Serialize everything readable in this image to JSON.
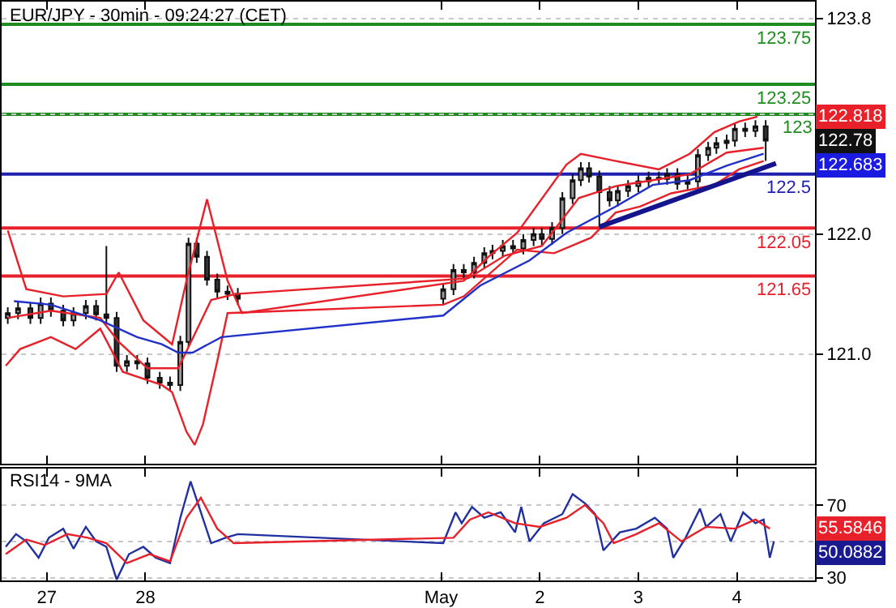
{
  "chart_data": [
    {
      "type": "candlestick",
      "title": "EUR/JPY - 30min - 09:24:27 (CET)",
      "x": [
        "--04-26T14:30",
        "--04-26T17:00",
        "--04-26T20:00",
        "--04-26T22:30",
        "--04-27T01:00",
        "--04-27T04:00",
        "--04-27T06:30",
        "--04-27T09:30",
        "--04-27T12:00",
        "--04-27T14:30",
        "--04-27T17:00",
        "--04-27T19:30",
        "--04-27T22:00",
        "--04-28T00:30",
        "--04-28T03:30",
        "--04-28T06:00",
        "--04-28T08:30",
        "--04-28T10:30",
        "--04-28T12:30",
        "--04-28T15:00",
        "--04-28T17:30",
        "--04-28T20:00",
        "--04-28T22:30",
        "--05-01T00:30",
        "--05-01T03:00",
        "--05-01T05:30",
        "--05-01T08:00",
        "--05-01T10:30",
        "--05-01T12:30",
        "--05-01T15:00",
        "--05-01T17:30",
        "--05-01T20:00",
        "--05-01T22:30",
        "--05-02T00:30",
        "--05-02T03:00",
        "--05-02T05:30",
        "--05-02T08:00",
        "--05-02T10:00",
        "--05-02T12:00",
        "--05-02T14:30",
        "--05-02T17:00",
        "--05-02T19:00",
        "--05-02T21:30",
        "--05-03T00:00",
        "--05-03T02:30",
        "--05-03T05:00",
        "--05-03T07:00",
        "--05-03T09:30",
        "--05-03T12:00",
        "--05-03T14:30",
        "--05-03T17:00",
        "--05-03T19:00",
        "--05-03T21:30",
        "--05-03T23:30",
        "--05-04T02:00",
        "--05-04T04:30",
        "--05-04T07:00"
      ],
      "ohlc": [
        [
          121.3,
          121.39,
          121.25,
          121.34
        ],
        [
          121.34,
          121.43,
          121.29,
          121.38
        ],
        [
          121.38,
          121.43,
          121.25,
          121.3
        ],
        [
          121.3,
          121.47,
          121.25,
          121.42
        ],
        [
          121.42,
          121.47,
          121.31,
          121.36
        ],
        [
          121.36,
          121.41,
          121.23,
          121.28
        ],
        [
          121.28,
          121.39,
          121.23,
          121.34
        ],
        [
          121.34,
          121.45,
          121.29,
          121.4
        ],
        [
          121.4,
          121.45,
          121.28,
          121.33
        ],
        [
          121.33,
          121.9,
          121.25,
          121.3
        ],
        [
          121.3,
          121.35,
          120.85,
          120.9
        ],
        [
          120.9,
          120.99,
          120.85,
          120.94
        ],
        [
          120.94,
          120.99,
          120.87,
          120.92
        ],
        [
          120.92,
          120.97,
          120.75,
          120.8
        ],
        [
          120.8,
          120.85,
          120.71,
          120.76
        ],
        [
          120.76,
          120.81,
          120.69,
          120.74
        ],
        [
          120.74,
          121.15,
          120.69,
          121.1
        ],
        [
          121.1,
          121.97,
          121.05,
          121.92
        ],
        [
          121.92,
          121.97,
          121.76,
          121.81
        ],
        [
          121.81,
          121.86,
          121.57,
          121.62
        ],
        [
          121.62,
          121.67,
          121.47,
          121.52
        ],
        [
          121.52,
          121.57,
          121.45,
          121.5
        ],
        [
          121.5,
          121.55,
          121.41,
          121.46
        ],
        [
          121.46,
          121.59,
          121.41,
          121.54
        ],
        [
          121.54,
          121.75,
          121.49,
          121.7
        ],
        [
          121.7,
          121.75,
          121.63,
          121.68
        ],
        [
          121.68,
          121.81,
          121.63,
          121.76
        ],
        [
          121.76,
          121.89,
          121.71,
          121.84
        ],
        [
          121.84,
          121.91,
          121.79,
          121.86
        ],
        [
          121.86,
          121.95,
          121.81,
          121.9
        ],
        [
          121.9,
          121.95,
          121.83,
          121.88
        ],
        [
          121.88,
          122.0,
          121.83,
          121.95
        ],
        [
          121.95,
          122.05,
          121.9,
          122.0
        ],
        [
          122.0,
          122.05,
          121.91,
          121.96
        ],
        [
          121.96,
          122.1,
          121.91,
          122.05
        ],
        [
          122.05,
          122.35,
          122.0,
          122.3
        ],
        [
          122.3,
          122.5,
          122.25,
          122.45
        ],
        [
          122.45,
          122.6,
          122.4,
          122.55
        ],
        [
          122.55,
          122.6,
          122.43,
          122.48
        ],
        [
          122.48,
          122.53,
          122.06,
          122.35
        ],
        [
          122.35,
          122.4,
          122.23,
          122.28
        ],
        [
          122.28,
          122.41,
          122.23,
          122.36
        ],
        [
          122.36,
          122.45,
          122.31,
          122.4
        ],
        [
          122.4,
          122.49,
          122.35,
          122.44
        ],
        [
          122.44,
          122.52,
          122.39,
          122.47
        ],
        [
          122.47,
          122.52,
          122.41,
          122.46
        ],
        [
          122.46,
          122.55,
          122.41,
          122.5
        ],
        [
          122.5,
          122.55,
          122.37,
          122.42
        ],
        [
          122.42,
          122.49,
          122.37,
          122.44
        ],
        [
          122.44,
          122.71,
          122.39,
          122.66
        ],
        [
          122.66,
          122.77,
          122.61,
          122.72
        ],
        [
          122.72,
          122.81,
          122.67,
          122.76
        ],
        [
          122.76,
          122.83,
          122.71,
          122.78
        ],
        [
          122.78,
          122.93,
          122.73,
          122.88
        ],
        [
          122.88,
          122.93,
          122.81,
          122.86
        ],
        [
          122.86,
          122.95,
          122.81,
          122.9
        ],
        [
          122.9,
          122.95,
          122.61,
          122.78
        ]
      ],
      "series": [
        {
          "type": "line",
          "color": "#e8202a",
          "x": [
            "--04-26T14:30",
            "--04-26T19:00",
            "--04-27T04:00",
            "--04-27T14:30",
            "--04-27T17:30",
            "--04-27T23:30",
            "--04-28T06:30",
            "--04-28T10:00",
            "--04-28T15:00",
            "--04-28T20:00",
            "--04-28T23:30",
            "--05-01T05:30",
            "--05-01T11:30",
            "--05-01T18:30",
            "--05-02T06:30",
            "--05-02T10:00",
            "--05-02T18:30",
            "--05-03T05:00",
            "--05-03T12:30",
            "--05-03T18:30",
            "--05-04T00:30",
            "--05-04T05:00"
          ],
          "values": [
            122.03,
            121.54,
            121.48,
            121.5,
            121.68,
            121.28,
            121.08,
            121.61,
            122.29,
            121.61,
            121.34,
            121.61,
            121.81,
            122.01,
            122.58,
            122.67,
            122.61,
            122.54,
            122.67,
            122.85,
            122.94,
            122.98
          ]
        },
        {
          "type": "line",
          "color": "#e8202a",
          "x": [
            "--04-26T14:00",
            "--04-26T17:30",
            "--04-27T01:00",
            "--04-27T07:00",
            "--04-27T13:00",
            "--04-27T18:30",
            "--04-28T04:00",
            "--04-28T06:30",
            "--04-28T10:00",
            "--04-28T12:00",
            "--04-28T14:00",
            "--04-28T17:30",
            "--04-28T20:00",
            "--05-01T00:30",
            "--05-01T05:30",
            "--05-01T18:30",
            "--05-02T03:30",
            "--05-02T12:30",
            "--05-02T18:30",
            "--05-03T00:30",
            "--05-03T08:00",
            "--05-03T18:30",
            "--05-04T00:30",
            "--05-04T06:30"
          ],
          "values": [
            120.9,
            121.04,
            121.14,
            121.04,
            121.21,
            120.85,
            120.74,
            120.68,
            120.35,
            120.24,
            120.41,
            120.94,
            121.34,
            121.41,
            121.48,
            121.87,
            121.84,
            121.97,
            122.18,
            122.23,
            122.34,
            122.41,
            122.54,
            122.61
          ]
        },
        {
          "type": "line",
          "color": "#e8202a",
          "x": [
            "--04-26T14:30",
            "--04-27T01:00",
            "--04-27T13:00",
            "--04-27T17:30",
            "--04-28T00:30",
            "--04-28T08:00",
            "--04-28T12:30",
            "--04-28T16:00",
            "--04-28T22:00",
            "--05-01T06:30",
            "--05-01T15:30",
            "--05-02T00:30",
            "--05-02T09:30",
            "--05-02T18:30",
            "--05-03T03:30",
            "--05-03T12:30",
            "--05-03T21:30",
            "--05-04T06:30"
          ],
          "values": [
            121.3,
            121.36,
            121.3,
            121.1,
            120.88,
            120.88,
            121.2,
            121.45,
            121.5,
            121.63,
            121.82,
            121.9,
            122.3,
            122.4,
            122.45,
            122.5,
            122.68,
            122.72
          ]
        },
        {
          "type": "line",
          "color": "#2030c8",
          "x": [
            "--04-26T16:00",
            "--04-27T01:00",
            "--04-27T13:00",
            "--04-27T22:00",
            "--04-28T04:00",
            "--04-28T08:00",
            "--04-28T11:30",
            "--04-28T18:30",
            "--05-01T00:30",
            "--05-01T09:30",
            "--05-01T21:30",
            "--05-02T06:30",
            "--05-02T18:30",
            "--05-03T03:30",
            "--05-03T12:30",
            "--05-03T21:30",
            "--05-04T06:30"
          ],
          "values": [
            121.44,
            121.41,
            121.28,
            121.14,
            121.08,
            121.01,
            121.01,
            121.14,
            121.32,
            121.57,
            121.78,
            122.01,
            122.23,
            122.41,
            122.45,
            122.57,
            122.67
          ]
        },
        {
          "type": "line",
          "color": "#14148c",
          "x": [
            "--05-02T14:30",
            "--05-04T09:30"
          ],
          "values": [
            122.06,
            122.59
          ]
        }
      ],
      "ref_lines": [
        {
          "axis": "y",
          "value": 123.75,
          "label": "123.75",
          "color": "#1e8c1e"
        },
        {
          "axis": "y",
          "value": 123.25,
          "label": "123.25",
          "color": "#1e8c1e"
        },
        {
          "axis": "y",
          "value": 123,
          "label": "123",
          "color": "#1e8c1e"
        },
        {
          "axis": "y",
          "value": 122.5,
          "label": "122.5",
          "color": "#2020b0"
        },
        {
          "axis": "y",
          "value": 122.05,
          "label": "122.05",
          "color": "#e8202a"
        },
        {
          "axis": "y",
          "value": 121.65,
          "label": "121.65",
          "color": "#e8202a"
        }
      ],
      "annotations": [
        "122.818",
        "122.78",
        "122.683"
      ],
      "xlim": [
        "--04-26T13:00",
        "--05-04T19:00"
      ],
      "xticks": [
        {
          "value": "--04-27",
          "label": null
        },
        {
          "value": "--04-28",
          "label": null
        },
        {
          "value": "--05-01",
          "label": null
        },
        {
          "value": "--05-02",
          "label": null
        },
        {
          "value": "--05-03",
          "label": null
        },
        {
          "value": "--05-04",
          "label": null
        }
      ],
      "ylim": [
        120.08,
        123.94
      ],
      "yticks": [
        {
          "value": 121.0,
          "label": "121.0"
        },
        {
          "value": 122.0,
          "label": "122.0"
        },
        {
          "value": 123.0,
          "label": null
        },
        {
          "value": 123.8,
          "label": "123.8"
        }
      ],
      "tick_labels": "y",
      "grid": "y"
    },
    {
      "type": "line",
      "title": "RSI14 - 9MA",
      "series": [
        {
          "color": "#2030a0",
          "x": [
            "--04-26T14:00",
            "--04-26T16:30",
            "--04-26T19:00",
            "--04-26T22:00",
            "--04-27T00:30",
            "--04-27T04:00",
            "--04-27T06:30",
            "--04-27T09:30",
            "--04-27T12:00",
            "--04-27T14:30",
            "--04-27T17:00",
            "--04-27T20:00",
            "--04-27T23:30",
            "--04-28T02:30",
            "--04-28T06:00",
            "--04-28T08:30",
            "--04-28T11:00",
            "--04-28T13:30",
            "--04-28T16:00",
            "--04-28T19:30",
            "--04-28T22:30",
            "--05-01T00:30",
            "--05-01T03:30",
            "--05-01T05:00",
            "--05-01T07:30",
            "--05-01T10:30",
            "--05-01T14:30",
            "--05-01T18:00",
            "--05-01T19:30",
            "--05-01T21:30",
            "--05-02T01:00",
            "--05-02T05:30",
            "--05-02T08:00",
            "--05-02T11:00",
            "--05-02T13:30",
            "--05-02T15:30",
            "--05-02T19:30",
            "--05-02T23:30",
            "--05-03T04:00",
            "--05-03T07:00",
            "--05-03T08:30",
            "--05-03T11:30",
            "--05-03T15:00",
            "--05-03T16:30",
            "--05-03T20:00",
            "--05-03T22:30",
            "--05-04T01:30",
            "--05-04T04:30",
            "--05-04T06:30",
            "--05-04T08:00",
            "--05-04T09:00"
          ],
          "values": [
            47,
            54,
            50,
            41,
            52,
            57,
            46,
            58,
            50,
            47,
            29,
            43,
            47,
            41,
            38,
            63,
            83,
            66,
            49,
            52,
            54,
            49,
            66,
            60,
            69,
            63,
            66,
            55,
            69,
            50,
            60,
            65,
            76,
            71,
            65,
            45,
            55,
            57,
            63,
            57,
            41,
            52,
            68,
            58,
            65,
            50,
            66,
            60,
            62,
            41,
            50
          ]
        },
        {
          "color": "#e8202a",
          "x": [
            "--04-26T14:00",
            "--04-26T19:00",
            "--04-26T23:30",
            "--04-27T05:00",
            "--04-27T10:00",
            "--04-27T14:30",
            "--04-27T19:30",
            "--04-28T01:00",
            "--04-28T06:00",
            "--04-28T10:00",
            "--04-28T13:30",
            "--04-28T17:30",
            "--04-28T21:30",
            "--05-01T03:00",
            "--05-01T07:00",
            "--05-01T11:30",
            "--05-01T18:00",
            "--05-02T00:00",
            "--05-02T06:30",
            "--05-02T11:00",
            "--05-02T15:30",
            "--05-02T18:00",
            "--05-02T23:30",
            "--05-03T05:00",
            "--05-03T10:30",
            "--05-03T16:30",
            "--05-03T23:30",
            "--05-04T04:30",
            "--05-04T08:00"
          ],
          "values": [
            43,
            51,
            48,
            54,
            52,
            49,
            38,
            43,
            39,
            63,
            74,
            57,
            49,
            52,
            62,
            66,
            60,
            58,
            63,
            70,
            60,
            49,
            54,
            60,
            50,
            58,
            57,
            62,
            57
          ]
        }
      ],
      "annotations": [
        "55.5846",
        "50.0882"
      ],
      "xlim": [
        "--04-26T13:00",
        "--05-04T19:00"
      ],
      "xticks": [
        {
          "value": "--04-27",
          "label": "27"
        },
        {
          "value": "--04-28",
          "label": "28"
        },
        {
          "value": "--05-01",
          "label": "May"
        },
        {
          "value": "--05-02",
          "label": "2"
        },
        {
          "value": "--05-03",
          "label": "3"
        },
        {
          "value": "--05-04",
          "label": "4"
        }
      ],
      "ylim": [
        28.5,
        90
      ],
      "yticks": [
        {
          "value": 30,
          "label": "30"
        },
        {
          "value": 50,
          "label": null
        },
        {
          "value": 70,
          "label": "70"
        }
      ],
      "grid": "y"
    }
  ]
}
